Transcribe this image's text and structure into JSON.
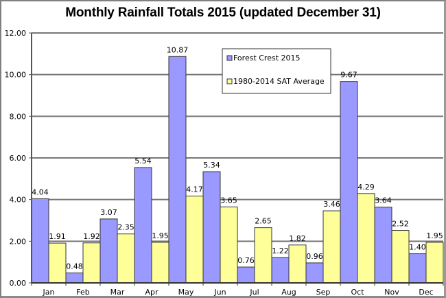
{
  "chart_data": {
    "type": "bar",
    "title": "Monthly Rainfall Totals 2015 (updated December 31)",
    "xlabel": "",
    "ylabel": "",
    "ylim": [
      0,
      12
    ],
    "yticks": [
      "0.00",
      "2.00",
      "4.00",
      "6.00",
      "8.00",
      "10.00",
      "12.00"
    ],
    "ytick_values": [
      0,
      2,
      4,
      6,
      8,
      10,
      12
    ],
    "grid": true,
    "legend_position": "top-center",
    "categories": [
      "Jan",
      "Feb",
      "Mar",
      "Apr",
      "May",
      "Jun",
      "Jul",
      "Aug",
      "Sep",
      "Oct",
      "Nov",
      "Dec"
    ],
    "series": [
      {
        "name": "Forest Crest 2015",
        "color": "#9999ff",
        "values": [
          4.04,
          0.48,
          3.07,
          5.54,
          10.87,
          5.34,
          0.76,
          1.22,
          0.96,
          9.67,
          3.64,
          1.4
        ],
        "labels": [
          "4.04",
          "0.48",
          "3.07",
          "5.54",
          "10.87",
          "5.34",
          "0.76",
          "1.22",
          "0.96",
          "9.67",
          "3.64",
          "1.40"
        ]
      },
      {
        "name": "1980-2014 SAT Average",
        "color": "#ffff99",
        "values": [
          1.91,
          1.92,
          2.35,
          1.95,
          4.17,
          3.65,
          2.65,
          1.82,
          3.46,
          4.29,
          2.52,
          1.95
        ],
        "labels": [
          "1.91",
          "1.92",
          "2.35",
          "1.95",
          "4.17",
          "3.65",
          "2.65",
          "1.82",
          "3.46",
          "4.29",
          "2.52",
          "1.95"
        ]
      }
    ]
  }
}
